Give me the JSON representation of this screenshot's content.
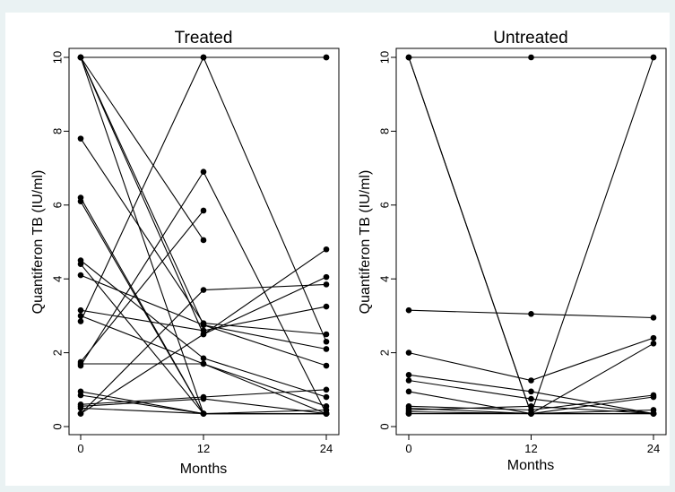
{
  "chart_data": [
    {
      "type": "line",
      "title": "Treated",
      "xlabel": "Months",
      "ylabel": "Quantiferon TB (IU/ml)",
      "x_ticks": [
        "0",
        "12",
        "24"
      ],
      "y_ticks": [
        "0",
        "2",
        "4",
        "6",
        "8",
        "10"
      ],
      "xlim": [
        0,
        24
      ],
      "ylim": [
        0,
        10
      ],
      "grid": false,
      "legend": "none",
      "line_color": "#000000",
      "series": [
        {
          "x": [
            0,
            12,
            24
          ],
          "y": [
            10,
            10,
            10
          ]
        },
        {
          "x": [
            0,
            12,
            24
          ],
          "y": [
            10,
            10,
            10
          ]
        },
        {
          "x": [
            0,
            12
          ],
          "y": [
            10,
            5.05
          ]
        },
        {
          "x": [
            0,
            12,
            24
          ],
          "y": [
            10,
            2.75,
            2.1
          ]
        },
        {
          "x": [
            0,
            12,
            24
          ],
          "y": [
            10,
            2.5,
            4.05
          ]
        },
        {
          "x": [
            0,
            12,
            24
          ],
          "y": [
            10,
            0.35,
            0.35
          ]
        },
        {
          "x": [
            0,
            12,
            24
          ],
          "y": [
            7.8,
            2.8,
            2.5
          ]
        },
        {
          "x": [
            0,
            12,
            24
          ],
          "y": [
            6.2,
            0.35,
            0.35
          ]
        },
        {
          "x": [
            0,
            12,
            24
          ],
          "y": [
            6.1,
            0.35,
            0.35
          ]
        },
        {
          "x": [
            0,
            12,
            24
          ],
          "y": [
            4.5,
            1.85,
            0.8
          ]
        },
        {
          "x": [
            0,
            12,
            24
          ],
          "y": [
            4.4,
            0.35,
            0.35
          ]
        },
        {
          "x": [
            0,
            12,
            24
          ],
          "y": [
            4.1,
            2.75,
            1.65
          ]
        },
        {
          "x": [
            0,
            12,
            24
          ],
          "y": [
            3.15,
            2.6,
            3.25
          ]
        },
        {
          "x": [
            0,
            12,
            24
          ],
          "y": [
            3.0,
            1.7,
            0.55
          ]
        },
        {
          "x": [
            0,
            12,
            24
          ],
          "y": [
            2.85,
            10,
            2.3
          ]
        },
        {
          "x": [
            0,
            12
          ],
          "y": [
            1.75,
            5.85
          ]
        },
        {
          "x": [
            0,
            12,
            24
          ],
          "y": [
            1.65,
            6.9,
            0.35
          ]
        },
        {
          "x": [
            0,
            12,
            24
          ],
          "y": [
            1.7,
            1.7,
            0.35
          ]
        },
        {
          "x": [
            0,
            12,
            24
          ],
          "y": [
            0.95,
            0.35,
            0.35
          ]
        },
        {
          "x": [
            0,
            12,
            24
          ],
          "y": [
            0.85,
            0.35,
            0.35
          ]
        },
        {
          "x": [
            0,
            12,
            24
          ],
          "y": [
            0.6,
            0.8,
            1.0
          ]
        },
        {
          "x": [
            0,
            12,
            24
          ],
          "y": [
            0.55,
            0.75,
            0.35
          ]
        },
        {
          "x": [
            0,
            12,
            24
          ],
          "y": [
            0.5,
            0.35,
            0.45
          ]
        },
        {
          "x": [
            0,
            12,
            24
          ],
          "y": [
            0.35,
            3.7,
            3.85
          ]
        },
        {
          "x": [
            0,
            12,
            24
          ],
          "y": [
            0.35,
            2.5,
            4.8
          ]
        }
      ]
    },
    {
      "type": "line",
      "title": "Untreated",
      "xlabel": "Months",
      "ylabel": "Quantiferon TB  (IU/ml)",
      "x_ticks": [
        "0",
        "12",
        "24"
      ],
      "y_ticks": [
        "0",
        "2",
        "4",
        "6",
        "8",
        "10"
      ],
      "xlim": [
        0,
        24
      ],
      "ylim": [
        0,
        10
      ],
      "grid": false,
      "legend": "none",
      "line_color": "#000000",
      "series": [
        {
          "x": [
            0,
            12,
            24
          ],
          "y": [
            10,
            10,
            10
          ]
        },
        {
          "x": [
            0,
            12,
            24
          ],
          "y": [
            10,
            0.35,
            0.35
          ]
        },
        {
          "x": [
            0,
            12,
            24
          ],
          "y": [
            10,
            0.35,
            0.35
          ]
        },
        {
          "x": [
            0,
            12,
            24
          ],
          "y": [
            0.35,
            0.35,
            10
          ]
        },
        {
          "x": [
            0,
            12,
            24
          ],
          "y": [
            3.15,
            3.05,
            2.95
          ]
        },
        {
          "x": [
            0,
            12,
            24
          ],
          "y": [
            2.0,
            1.25,
            2.4
          ]
        },
        {
          "x": [
            0,
            12,
            24
          ],
          "y": [
            1.4,
            0.95,
            0.35
          ]
        },
        {
          "x": [
            0,
            12,
            24
          ],
          "y": [
            1.25,
            0.75,
            0.35
          ]
        },
        {
          "x": [
            0,
            12,
            24
          ],
          "y": [
            0.95,
            0.35,
            2.25
          ]
        },
        {
          "x": [
            0,
            12,
            24
          ],
          "y": [
            0.55,
            0.45,
            0.85
          ]
        },
        {
          "x": [
            0,
            12,
            24
          ],
          "y": [
            0.5,
            0.35,
            0.8
          ]
        },
        {
          "x": [
            0,
            12,
            24
          ],
          "y": [
            0.45,
            0.55,
            0.35
          ]
        },
        {
          "x": [
            0,
            12,
            24
          ],
          "y": [
            0.4,
            0.35,
            0.45
          ]
        },
        {
          "x": [
            0,
            12,
            24
          ],
          "y": [
            0.35,
            0.35,
            0.35
          ]
        }
      ]
    }
  ]
}
